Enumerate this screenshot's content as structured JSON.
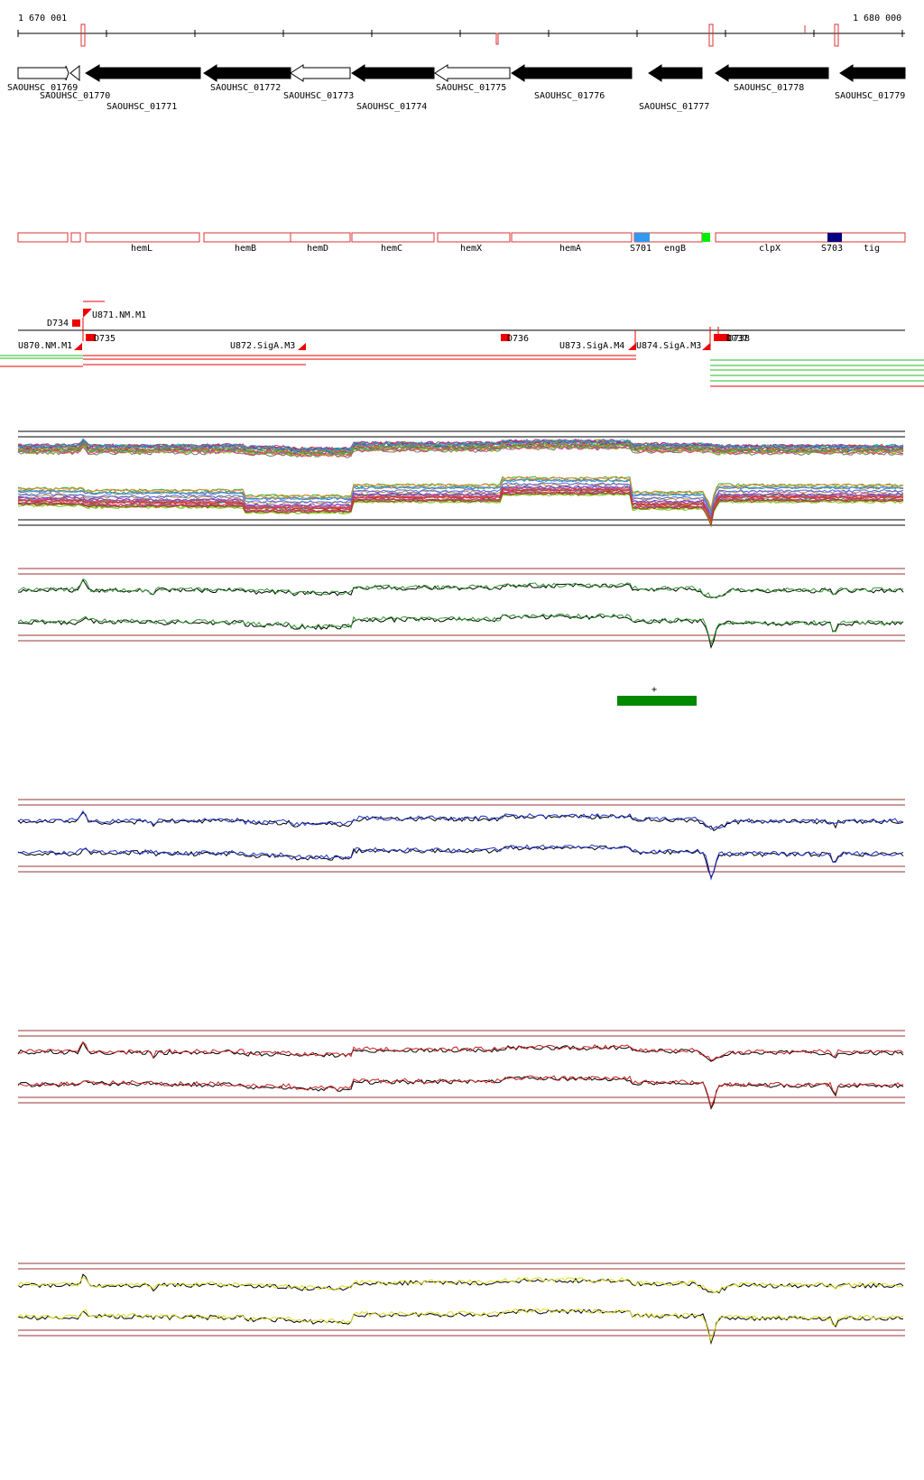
{
  "ruler": {
    "start_label": "1 670 001",
    "end_label": "1 680 000"
  },
  "genes": [
    {
      "id": "SAOUHSC_01769",
      "strand": "+"
    },
    {
      "id": "SAOUHSC_01770",
      "strand": "+"
    },
    {
      "id": "SAOUHSC_01771",
      "strand": "-"
    },
    {
      "id": "SAOUHSC_01772",
      "strand": "-"
    },
    {
      "id": "SAOUHSC_01773",
      "strand": "+"
    },
    {
      "id": "SAOUHSC_01774",
      "strand": "-"
    },
    {
      "id": "SAOUHSC_01775",
      "strand": "+"
    },
    {
      "id": "SAOUHSC_01776",
      "strand": "-"
    },
    {
      "id": "SAOUHSC_01777",
      "strand": "-"
    },
    {
      "id": "SAOUHSC_01778",
      "strand": "-"
    },
    {
      "id": "SAOUHSC_01779",
      "strand": "-"
    }
  ],
  "annotations": [
    "hemL",
    "hemB",
    "hemD",
    "hemC",
    "hemX",
    "hemA",
    "S701",
    "engB",
    "clpX",
    "S703",
    "tig"
  ],
  "regulatory": {
    "markers": [
      "D734",
      "D735",
      "D736",
      "D737",
      "D738"
    ],
    "segments": [
      "U870.NM.M1",
      "U871.NM.M1",
      "U872.SigA.M3",
      "U873.SigA.M4",
      "U874.SigA.M3"
    ]
  },
  "highlight_label": "+",
  "colors": {
    "gene_box": "#dd3333",
    "regulatory_mark": "#ee0000",
    "s701": "#3399ee",
    "s703": "#000080",
    "green_mark": "#00ee00",
    "highlight_bar": "#008800",
    "track1_color": "#339933",
    "track2_color": "#2233cc",
    "track3_color": "#cc2222",
    "track4_color": "#dddd22",
    "guide_line": "#993333"
  }
}
